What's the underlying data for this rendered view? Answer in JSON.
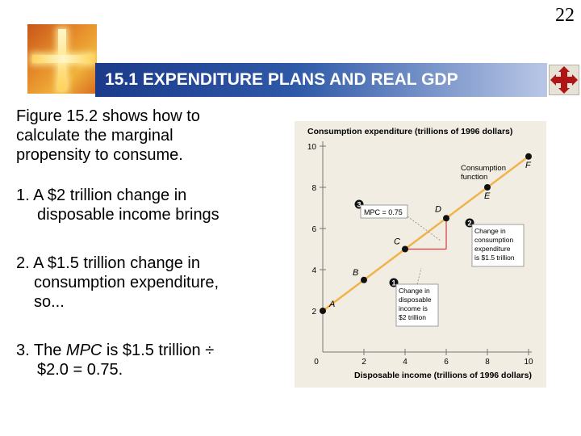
{
  "slide": {
    "page_number": "22",
    "title": "15.1 EXPENDITURE PLANS AND REAL GDP"
  },
  "text": {
    "intro": [
      "Figure 15.2 shows how to",
      "calculate the marginal",
      "propensity to consume."
    ],
    "point1": {
      "num": "1.",
      "line1": "A $2 trillion change in",
      "line2": "disposable income brings"
    },
    "point2": {
      "num": "2.",
      "line1": "A $1.5 trillion change in",
      "line2": "consumption expenditure,",
      "line3": "so..."
    },
    "point3": {
      "num": "3.",
      "pre": "The ",
      "mpc": "MPC",
      "post": " is $1.5 trillion ÷",
      "line2": "$2.0 = 0.75."
    }
  },
  "colors": {
    "title_bar": "#1b3a8a",
    "consumption_line": "#f0b44a",
    "delta_lines": "#d83a3a",
    "badge": "#111111",
    "chart_bg": "#f1ede3"
  },
  "chart_data": {
    "type": "line",
    "title": "",
    "ylabel": "Consumption expenditure (trillions of 1996 dollars)",
    "xlabel": "Disposable income (trillions of 1996 dollars)",
    "xlim": [
      0,
      10
    ],
    "ylim": [
      0,
      10
    ],
    "x_ticks": [
      "0",
      "2",
      "4",
      "6",
      "8",
      "10"
    ],
    "y_ticks": [
      "2",
      "4",
      "6",
      "8",
      "10"
    ],
    "grid": false,
    "series": [
      {
        "name": "Consumption function",
        "x": [
          0,
          10
        ],
        "y": [
          2,
          9.5
        ]
      }
    ],
    "points": [
      {
        "label": "A",
        "x": 0,
        "y": 2
      },
      {
        "label": "B",
        "x": 2,
        "y": 3.5
      },
      {
        "label": "C",
        "x": 4,
        "y": 5
      },
      {
        "label": "D",
        "x": 6,
        "y": 6.5
      },
      {
        "label": "E",
        "x": 8,
        "y": 8
      },
      {
        "label": "F",
        "x": 10,
        "y": 9.5
      }
    ],
    "delta": {
      "x_from": 4,
      "x_to": 6,
      "y_from": 5,
      "y_to": 6.5
    },
    "annotations": {
      "function_label": [
        "Consumption",
        "function"
      ],
      "callout1": {
        "num": "1",
        "lines": [
          "Change in",
          "disposable",
          "income is",
          "$2 trillion"
        ]
      },
      "callout2": {
        "num": "2",
        "lines": [
          "Change in",
          "consumption",
          "expenditure",
          "is $1.5 trillion"
        ]
      },
      "callout3": {
        "num": "3",
        "text": "MPC = 0.75"
      }
    }
  }
}
